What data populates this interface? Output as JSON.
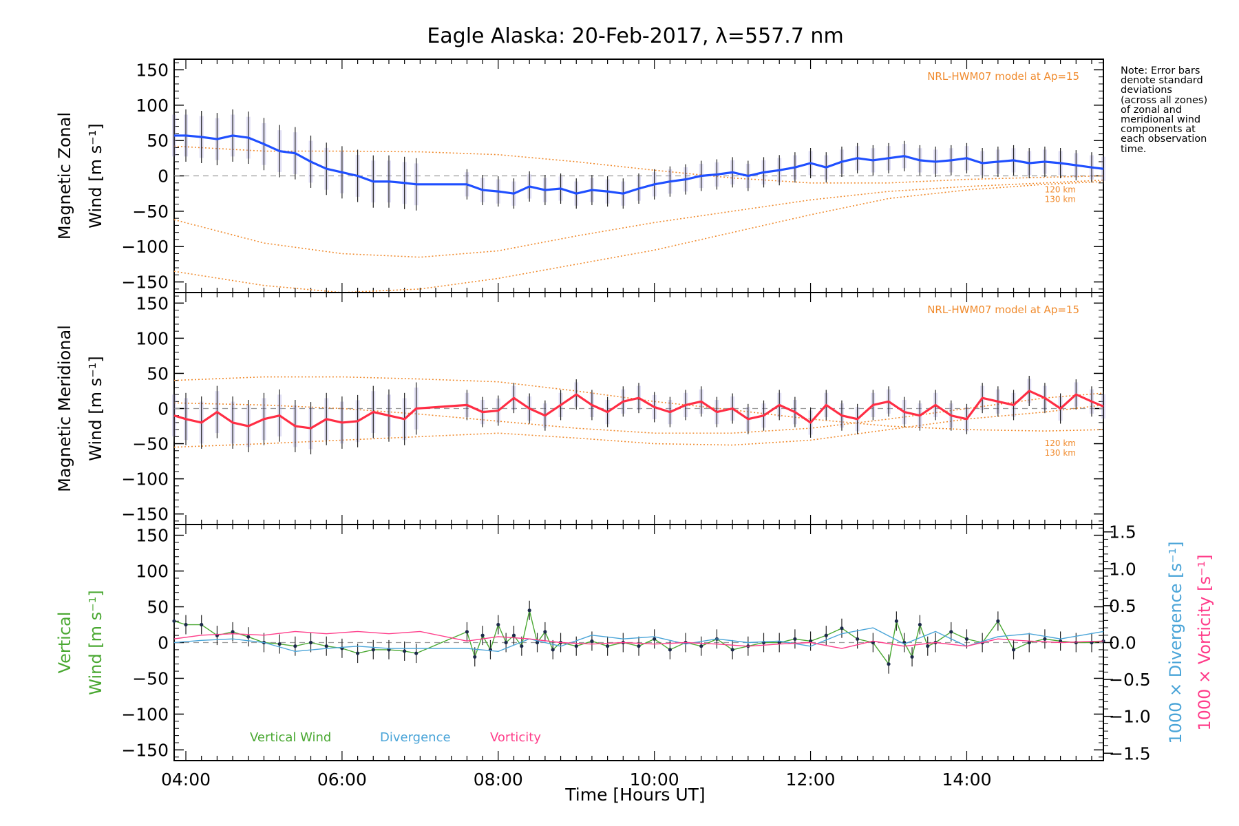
{
  "chart_data": {
    "title": "Eagle Alaska: 20-Feb-2017, λ=557.7 nm",
    "xlabel": "Time [Hours UT]",
    "xlim_hours": [
      3.85,
      15.75
    ],
    "x_ticks": [
      "04:00",
      "06:00",
      "08:00",
      "10:00",
      "12:00",
      "14:00"
    ],
    "note": "Note: Error bars\ndenote standard\ndeviations\n(across all zones)\nof zonal and\nmeridional wind\ncomponents at\neach observation\ntime.",
    "colors": {
      "zonal": "#1f4fff",
      "meridional": "#ff2d44",
      "vertical": "#4aa832",
      "divergence": "#49a4d8",
      "vorticity": "#ff3d8a",
      "model": "#f08a2c",
      "scatter": "#a8a3e0",
      "errorbar": "#222222"
    },
    "panels": [
      {
        "type": "line",
        "ylabel_line1": "Magnetic Zonal",
        "ylabel_line2": "Wind [m s⁻¹]",
        "ylim": [
          -165,
          165
        ],
        "y_ticks": [
          150,
          100,
          50,
          0,
          -50,
          -100,
          -150
        ],
        "model_label": "NRL-HWM07 model at Ap=15",
        "model_alt_labels": [
          "120 km",
          "130 km"
        ],
        "series": [
          {
            "key": "zonal",
            "x": [
              3.85,
              4.0,
              4.2,
              4.4,
              4.6,
              4.8,
              5.0,
              5.2,
              5.4,
              5.6,
              5.8,
              6.0,
              6.2,
              6.4,
              6.6,
              6.8,
              6.95,
              7.6,
              7.8,
              8.0,
              8.2,
              8.4,
              8.6,
              8.8,
              9.0,
              9.2,
              9.4,
              9.6,
              9.8,
              10.0,
              10.2,
              10.4,
              10.6,
              10.8,
              11.0,
              11.2,
              11.4,
              11.6,
              11.8,
              12.0,
              12.2,
              12.4,
              12.6,
              12.8,
              13.0,
              13.2,
              13.4,
              13.6,
              13.8,
              14.0,
              14.2,
              14.4,
              14.6,
              14.8,
              15.0,
              15.2,
              15.4,
              15.6,
              15.75
            ],
            "y": [
              57,
              57,
              55,
              52,
              57,
              54,
              45,
              35,
              32,
              20,
              10,
              5,
              0,
              -8,
              -8,
              -10,
              -12,
              -12,
              -20,
              -22,
              -25,
              -15,
              -20,
              -18,
              -25,
              -20,
              -22,
              -25,
              -18,
              -12,
              -8,
              -5,
              0,
              2,
              5,
              0,
              5,
              8,
              12,
              18,
              12,
              20,
              25,
              22,
              25,
              28,
              22,
              20,
              22,
              25,
              18,
              20,
              22,
              18,
              20,
              18,
              15,
              12,
              10
            ]
          }
        ],
        "model_curves": [
          {
            "x": [
              3.85,
              5.0,
              6.0,
              7.0,
              8.0,
              9.0,
              10.0,
              11.0,
              12.0,
              13.0,
              14.0,
              15.0,
              15.75
            ],
            "y": [
              42,
              35,
              35,
              34,
              30,
              20,
              8,
              -3,
              -10,
              -10,
              -5,
              -2,
              0
            ]
          },
          {
            "x": [
              3.85,
              5.0,
              6.0,
              7.0,
              8.0,
              9.0,
              10.0,
              11.0,
              12.0,
              13.0,
              14.0,
              15.0,
              15.75
            ],
            "y": [
              -62,
              -95,
              -110,
              -115,
              -106,
              -85,
              -66,
              -50,
              -34,
              -22,
              -15,
              -10,
              -6
            ]
          },
          {
            "x": [
              3.85,
              5.0,
              6.0,
              7.0,
              8.0,
              9.0,
              10.0,
              11.0,
              12.0,
              13.0,
              14.0,
              15.0,
              15.75
            ],
            "y": [
              -135,
              -155,
              -165,
              -160,
              -145,
              -125,
              -105,
              -80,
              -55,
              -32,
              -20,
              -12,
              -8
            ]
          }
        ]
      },
      {
        "type": "line",
        "ylabel_line1": "Magnetic Meridional",
        "ylabel_line2": "Wind [m s⁻¹]",
        "ylim": [
          -165,
          165
        ],
        "y_ticks": [
          150,
          100,
          50,
          0,
          -50,
          -100,
          -150
        ],
        "model_label": "NRL-HWM07 model at Ap=15",
        "model_alt_labels": [
          "120 km",
          "130 km"
        ],
        "series": [
          {
            "key": "meridional",
            "x": [
              3.85,
              4.0,
              4.2,
              4.4,
              4.6,
              4.8,
              5.0,
              5.2,
              5.4,
              5.6,
              5.8,
              6.0,
              6.2,
              6.4,
              6.6,
              6.8,
              6.95,
              7.6,
              7.8,
              8.0,
              8.2,
              8.4,
              8.6,
              8.8,
              9.0,
              9.2,
              9.4,
              9.6,
              9.8,
              10.0,
              10.2,
              10.4,
              10.6,
              10.8,
              11.0,
              11.2,
              11.4,
              11.6,
              11.8,
              12.0,
              12.2,
              12.4,
              12.6,
              12.8,
              13.0,
              13.2,
              13.4,
              13.6,
              13.8,
              14.0,
              14.2,
              14.4,
              14.6,
              14.8,
              15.0,
              15.2,
              15.4,
              15.6,
              15.75
            ],
            "y": [
              -10,
              -15,
              -20,
              -5,
              -20,
              -25,
              -15,
              -10,
              -25,
              -28,
              -15,
              -20,
              -18,
              -5,
              -10,
              -15,
              0,
              5,
              -5,
              -3,
              15,
              0,
              -10,
              5,
              20,
              5,
              -5,
              10,
              15,
              2,
              -5,
              5,
              10,
              -5,
              0,
              -15,
              -10,
              5,
              -5,
              -20,
              5,
              -10,
              -15,
              5,
              10,
              -5,
              -10,
              5,
              -10,
              -15,
              15,
              10,
              5,
              25,
              15,
              0,
              20,
              10,
              3
            ]
          }
        ],
        "model_curves": [
          {
            "x": [
              3.85,
              5.0,
              6.0,
              7.0,
              8.0,
              9.0,
              10.0,
              11.0,
              12.0,
              13.0,
              14.0,
              15.0,
              15.75
            ],
            "y": [
              40,
              45,
              45,
              42,
              38,
              25,
              10,
              -2,
              -15,
              -25,
              -30,
              -32,
              -30
            ]
          },
          {
            "x": [
              3.85,
              5.0,
              6.0,
              7.0,
              8.0,
              9.0,
              10.0,
              11.0,
              12.0,
              13.0,
              14.0,
              15.0,
              15.75
            ],
            "y": [
              8,
              5,
              0,
              -8,
              -18,
              -28,
              -35,
              -35,
              -28,
              -15,
              0,
              15,
              22
            ]
          },
          {
            "x": [
              3.85,
              5.0,
              6.0,
              7.0,
              8.0,
              9.0,
              10.0,
              11.0,
              12.0,
              13.0,
              14.0,
              15.0,
              15.75
            ],
            "y": [
              -55,
              -50,
              -45,
              -40,
              -35,
              -42,
              -50,
              -52,
              -45,
              -30,
              -15,
              -5,
              5
            ]
          }
        ]
      },
      {
        "type": "line",
        "ylabel_line1": "Vertical",
        "ylabel_line2": "Wind [m s⁻¹]",
        "ylim": [
          -165,
          165
        ],
        "y_ticks": [
          150,
          100,
          50,
          0,
          -50,
          -100,
          -150
        ],
        "y2_label_divergence": "1000 × Divergence [s⁻¹]",
        "y2_label_vorticity": "1000 × Vorticity [s⁻¹]",
        "y2lim": [
          -1.6,
          1.6
        ],
        "y2_ticks": [
          "1.5",
          "1.0",
          "0.5",
          "0.0",
          "−0.5",
          "−1.0",
          "−1.5"
        ],
        "legend": [
          {
            "key": "vertical",
            "label": "Vertical Wind"
          },
          {
            "key": "divergence",
            "label": "Divergence"
          },
          {
            "key": "vorticity",
            "label": "Vorticity"
          }
        ],
        "series": [
          {
            "key": "vertical",
            "x": [
              3.85,
              4.0,
              4.2,
              4.4,
              4.6,
              4.8,
              5.0,
              5.2,
              5.4,
              5.6,
              5.8,
              6.0,
              6.2,
              6.4,
              6.6,
              6.8,
              6.95,
              7.6,
              7.7,
              7.8,
              7.9,
              8.0,
              8.1,
              8.2,
              8.3,
              8.4,
              8.5,
              8.6,
              8.7,
              8.8,
              9.0,
              9.2,
              9.4,
              9.6,
              9.8,
              10.0,
              10.2,
              10.4,
              10.6,
              10.8,
              11.0,
              11.2,
              11.4,
              11.6,
              11.8,
              12.0,
              12.2,
              12.4,
              12.6,
              12.8,
              13.0,
              13.1,
              13.2,
              13.3,
              13.4,
              13.5,
              13.6,
              13.8,
              14.0,
              14.2,
              14.4,
              14.6,
              14.8,
              15.0,
              15.2,
              15.4,
              15.6,
              15.75
            ],
            "y": [
              30,
              25,
              25,
              10,
              15,
              8,
              0,
              -2,
              -5,
              0,
              -5,
              -8,
              -15,
              -10,
              -10,
              -12,
              -15,
              15,
              -20,
              10,
              -10,
              25,
              0,
              10,
              -5,
              45,
              0,
              15,
              -10,
              0,
              -5,
              2,
              -5,
              0,
              -5,
              5,
              -10,
              0,
              -5,
              5,
              -10,
              -5,
              0,
              0,
              5,
              2,
              10,
              20,
              5,
              0,
              -30,
              30,
              0,
              -20,
              25,
              -5,
              0,
              15,
              5,
              0,
              30,
              -10,
              0,
              5,
              2,
              0,
              0,
              2
            ]
          },
          {
            "key": "divergence",
            "x": [
              3.85,
              4.2,
              4.6,
              5.0,
              5.4,
              5.8,
              6.2,
              6.6,
              7.0,
              7.6,
              8.0,
              8.4,
              8.8,
              9.2,
              9.6,
              10.0,
              10.4,
              10.8,
              11.2,
              11.6,
              12.0,
              12.4,
              12.8,
              13.2,
              13.6,
              14.0,
              14.4,
              14.8,
              15.2,
              15.75
            ],
            "y": [
              0.0,
              0.03,
              0.05,
              0.0,
              -0.12,
              -0.08,
              -0.05,
              -0.08,
              -0.08,
              -0.08,
              -0.12,
              0.05,
              -0.05,
              0.1,
              0.05,
              0.08,
              -0.02,
              0.05,
              0.0,
              0.02,
              -0.05,
              0.12,
              0.2,
              -0.02,
              0.15,
              -0.05,
              0.08,
              0.12,
              0.05,
              0.15
            ]
          },
          {
            "key": "vorticity",
            "x": [
              3.85,
              4.2,
              4.6,
              5.0,
              5.4,
              5.8,
              6.2,
              6.6,
              7.0,
              7.6,
              8.0,
              8.4,
              8.8,
              9.2,
              9.6,
              10.0,
              10.4,
              10.8,
              11.2,
              11.6,
              12.0,
              12.4,
              12.8,
              13.2,
              13.6,
              14.0,
              14.4,
              14.8,
              15.2,
              15.75
            ],
            "y": [
              0.05,
              0.1,
              0.12,
              0.1,
              0.15,
              0.12,
              0.15,
              0.12,
              0.15,
              0.02,
              0.08,
              0.05,
              0.0,
              -0.02,
              0.0,
              -0.02,
              0.0,
              -0.02,
              -0.05,
              -0.02,
              0.0,
              -0.08,
              0.02,
              -0.05,
              0.0,
              -0.05,
              0.05,
              0.02,
              0.0,
              0.02
            ]
          }
        ]
      }
    ]
  }
}
